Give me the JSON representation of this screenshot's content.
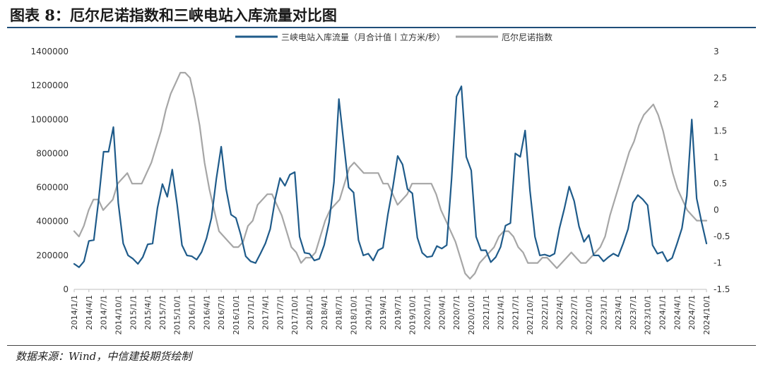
{
  "header": {
    "title": "图表 8：厄尔尼诺指数和三峡电站入库流量对比图"
  },
  "footer": {
    "source": "数据来源：Wind，中信建投期货绘制"
  },
  "chart_data": {
    "type": "line",
    "title": "图表 8：厄尔尼诺指数和三峡电站入库流量对比图",
    "legend_position": "top",
    "grid": false,
    "x_tick_labels": [
      "2014/1/1",
      "2014/4/1",
      "2014/7/1",
      "2014/10/1",
      "2015/1/1",
      "2015/4/1",
      "2015/7/1",
      "2015/10/1",
      "2016/1/1",
      "2016/4/1",
      "2016/7/1",
      "2016/10/1",
      "2017/1/1",
      "2017/4/1",
      "2017/7/1",
      "2017/10/1",
      "2018/1/1",
      "2018/4/1",
      "2018/7/1",
      "2018/10/1",
      "2019/1/1",
      "2019/4/1",
      "2019/7/1",
      "2019/10/1",
      "2020/1/1",
      "2020/4/1",
      "2020/7/1",
      "2020/10/1",
      "2021/1/1",
      "2021/4/1",
      "2021/7/1",
      "2021/10/1",
      "2022/1/1",
      "2022/4/1",
      "2022/7/1",
      "2022/10/1",
      "2023/1/1",
      "2023/4/1",
      "2023/7/1",
      "2023/10/1",
      "2024/1/1",
      "2024/4/1",
      "2024/7/1",
      "2024/10/1"
    ],
    "y_left": {
      "range": [
        0,
        1400000
      ],
      "ticks": [
        0,
        200000,
        400000,
        600000,
        800000,
        1000000,
        1200000,
        1400000
      ],
      "tick_labels": [
        "0",
        "200000",
        "400000",
        "600000",
        "800000",
        "1000000",
        "1200000",
        "1400000"
      ]
    },
    "y_right": {
      "range": [
        -1.5,
        3
      ],
      "ticks": [
        -1.5,
        -1,
        -0.5,
        0,
        0.5,
        1,
        1.5,
        2,
        2.5,
        3
      ],
      "tick_labels": [
        "-1.5",
        "-1",
        "-0.5",
        "0",
        "0.5",
        "1",
        "1.5",
        "2",
        "2.5",
        "3"
      ]
    },
    "series": [
      {
        "name": "三峡电站入库流量（月合计值丨立方米/秒）",
        "axis": "left",
        "color": "#1f5b8a",
        "values": [
          150000,
          130000,
          165000,
          285000,
          290000,
          530000,
          810000,
          810000,
          955000,
          510000,
          270000,
          200000,
          180000,
          150000,
          190000,
          265000,
          270000,
          480000,
          620000,
          545000,
          705000,
          500000,
          260000,
          200000,
          195000,
          175000,
          220000,
          300000,
          420000,
          650000,
          840000,
          590000,
          440000,
          420000,
          320000,
          195000,
          165000,
          155000,
          210000,
          270000,
          355000,
          530000,
          655000,
          610000,
          675000,
          690000,
          310000,
          215000,
          210000,
          170000,
          180000,
          260000,
          395000,
          630000,
          1120000,
          860000,
          600000,
          570000,
          290000,
          200000,
          210000,
          170000,
          230000,
          245000,
          440000,
          600000,
          785000,
          735000,
          590000,
          565000,
          305000,
          215000,
          190000,
          195000,
          255000,
          240000,
          260000,
          650000,
          1135000,
          1195000,
          780000,
          700000,
          310000,
          230000,
          230000,
          160000,
          190000,
          250000,
          375000,
          390000,
          800000,
          780000,
          935000,
          580000,
          310000,
          200000,
          205000,
          195000,
          210000,
          360000,
          475000,
          605000,
          520000,
          370000,
          280000,
          320000,
          200000,
          200000,
          165000,
          190000,
          210000,
          195000,
          270000,
          355000,
          510000,
          555000,
          530000,
          495000,
          260000,
          210000,
          220000,
          165000,
          185000,
          270000,
          360000,
          550000,
          1000000,
          535000,
          395000,
          270000
        ]
      },
      {
        "name": "厄尔尼诺指数",
        "axis": "right",
        "color": "#a6a6a6",
        "values": [
          -0.4,
          -0.5,
          -0.3,
          0.0,
          0.2,
          0.2,
          0.0,
          0.1,
          0.2,
          0.5,
          0.6,
          0.7,
          0.5,
          0.5,
          0.5,
          0.7,
          0.9,
          1.2,
          1.5,
          1.9,
          2.2,
          2.4,
          2.6,
          2.6,
          2.5,
          2.1,
          1.6,
          0.9,
          0.4,
          0.0,
          -0.4,
          -0.5,
          -0.6,
          -0.7,
          -0.7,
          -0.6,
          -0.3,
          -0.2,
          0.1,
          0.2,
          0.3,
          0.3,
          0.1,
          -0.1,
          -0.4,
          -0.7,
          -0.8,
          -1.0,
          -0.9,
          -0.9,
          -0.8,
          -0.5,
          -0.2,
          0.0,
          0.1,
          0.2,
          0.5,
          0.8,
          0.9,
          0.8,
          0.7,
          0.7,
          0.7,
          0.7,
          0.5,
          0.5,
          0.3,
          0.1,
          0.2,
          0.3,
          0.5,
          0.5,
          0.5,
          0.5,
          0.5,
          0.3,
          0.0,
          -0.2,
          -0.4,
          -0.6,
          -0.9,
          -1.2,
          -1.3,
          -1.2,
          -1.0,
          -0.9,
          -0.8,
          -0.7,
          -0.5,
          -0.4,
          -0.4,
          -0.5,
          -0.7,
          -0.8,
          -1.0,
          -1.0,
          -1.0,
          -0.9,
          -0.9,
          -1.0,
          -1.1,
          -1.0,
          -0.9,
          -0.8,
          -0.9,
          -1.0,
          -1.0,
          -0.9,
          -0.8,
          -0.7,
          -0.5,
          -0.1,
          0.2,
          0.5,
          0.8,
          1.1,
          1.3,
          1.6,
          1.8,
          1.9,
          2.0,
          1.8,
          1.5,
          1.1,
          0.7,
          0.4,
          0.2,
          0.0,
          -0.1,
          -0.2,
          -0.2,
          -0.2
        ]
      }
    ]
  }
}
